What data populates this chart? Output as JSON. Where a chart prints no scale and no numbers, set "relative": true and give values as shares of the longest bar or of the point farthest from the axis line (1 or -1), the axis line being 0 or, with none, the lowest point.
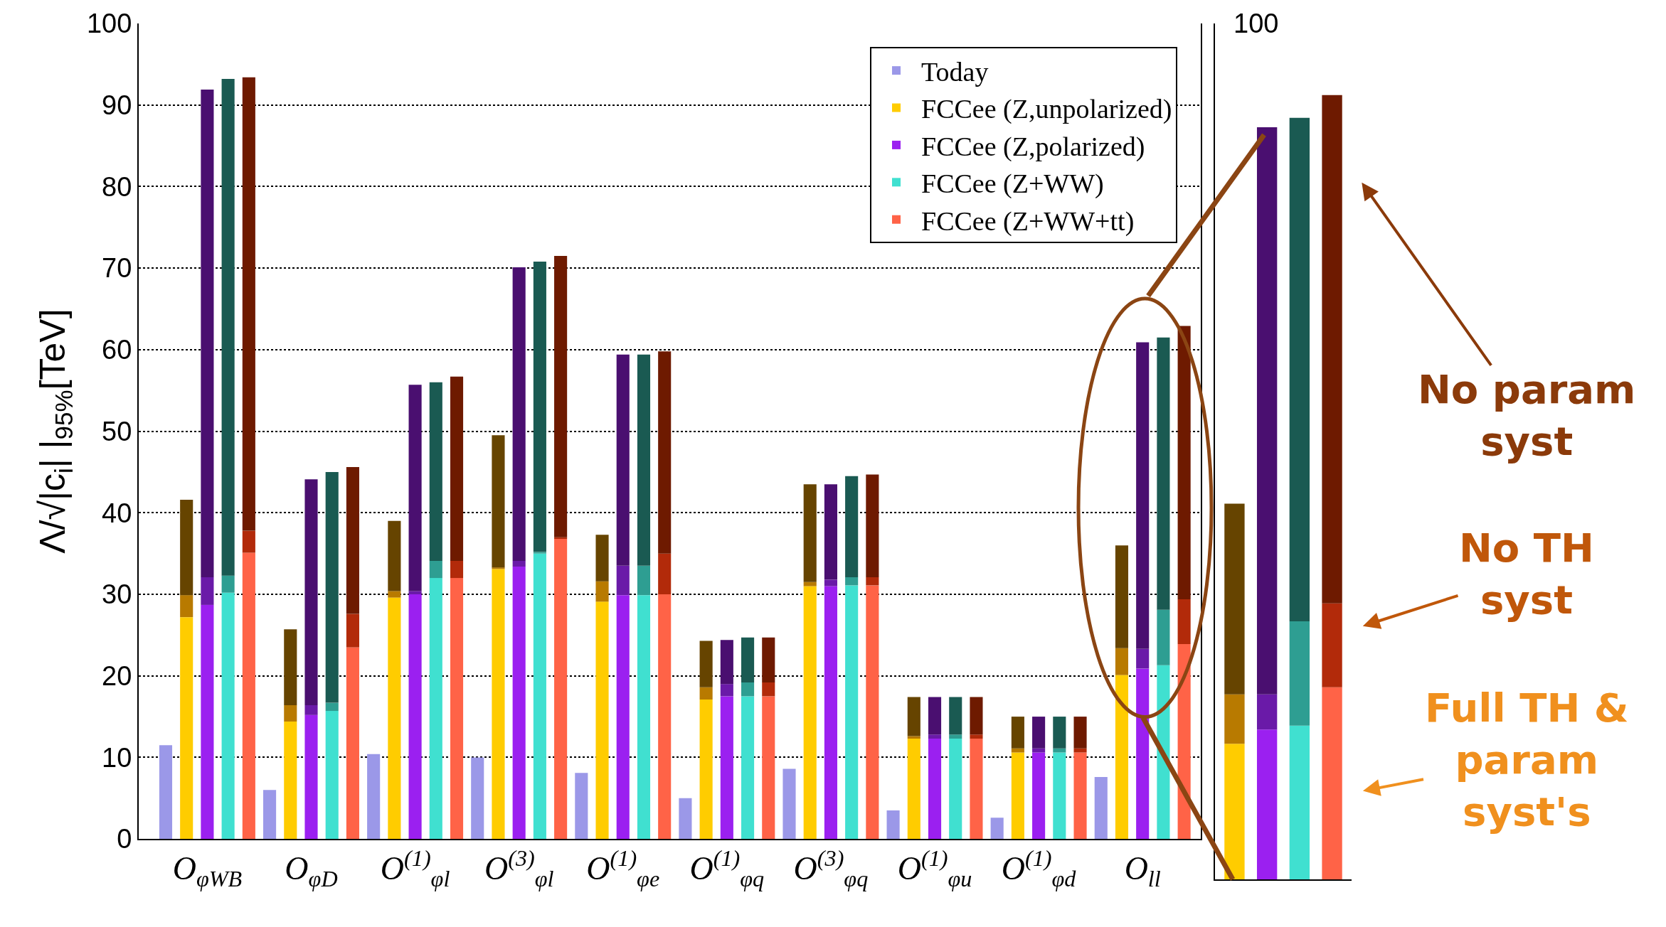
{
  "chart_data": [
    {
      "type": "bar",
      "ylabel": "Λ/√|c$_{i}$| |$_{95%}$[TeV]",
      "categories": [
        null,
        null,
        "O$_{φWB}$",
        null,
        null,
        null,
        null,
        "O$_{φD}$",
        null,
        null,
        null,
        null,
        "O$^{(1)}$$_{φl}$",
        null,
        null,
        null,
        null,
        "O$^{(3)}$$_{φl}$",
        null,
        null,
        null,
        null,
        "O$^{(1)}$$_{φe}$",
        null,
        null,
        null,
        null,
        "O$^{(1)}$$_{φq}$",
        null,
        null,
        null,
        null,
        "O$^{(3)}$$_{φq}$",
        null,
        null,
        null,
        null,
        "O$^{(1)}$$_{φu}$",
        null,
        null,
        null,
        null,
        "O$^{(1)}$$_{φd}$",
        null,
        null,
        null,
        null,
        "O$_{ll}$",
        null,
        null
      ],
      "stacked": true,
      "ylim": [
        0,
        100
      ],
      "yticks": [
        0,
        10,
        20,
        30,
        40,
        50,
        60,
        70,
        80,
        90,
        100
      ],
      "grid": "y",
      "legend": "top right",
      "series": [
        {
          "name": "Today",
          "color": "#9b98e8",
          "values": [
            11.5,
            null,
            null,
            null,
            null,
            6.0,
            null,
            null,
            null,
            null,
            10.4,
            null,
            null,
            null,
            null,
            10.0,
            null,
            null,
            null,
            null,
            8.1,
            null,
            null,
            null,
            null,
            5.0,
            null,
            null,
            null,
            null,
            8.6,
            null,
            null,
            null,
            null,
            3.5,
            null,
            null,
            null,
            null,
            2.6,
            null,
            null,
            null,
            null,
            7.6,
            null,
            null,
            null,
            null
          ]
        },
        {
          "name": "FCCee (Z,unpolarized)",
          "color": "#ffcc00",
          "values": [
            null,
            27.2,
            null,
            null,
            null,
            null,
            14.4,
            null,
            null,
            null,
            null,
            29.6,
            null,
            null,
            null,
            null,
            33.1,
            null,
            null,
            null,
            null,
            29.1,
            null,
            null,
            null,
            null,
            17.1,
            null,
            null,
            null,
            null,
            31.0,
            null,
            null,
            null,
            null,
            12.3,
            null,
            null,
            null,
            null,
            10.6,
            null,
            null,
            null,
            null,
            20.1,
            null,
            null,
            null
          ]
        },
        {
          "name": "FCCee (Z,polarized)",
          "color": "#9b20f0",
          "values": [
            null,
            null,
            28.7,
            null,
            null,
            null,
            null,
            15.2,
            null,
            null,
            null,
            null,
            30.0,
            null,
            null,
            null,
            null,
            33.4,
            null,
            null,
            null,
            null,
            29.9,
            null,
            null,
            null,
            null,
            17.5,
            null,
            null,
            null,
            null,
            31.0,
            null,
            null,
            null,
            null,
            12.3,
            null,
            null,
            null,
            null,
            10.6,
            null,
            null,
            null,
            null,
            20.9,
            null,
            null
          ]
        },
        {
          "name": "FCCee (Z+WW)",
          "color": "#40e0d0",
          "values": [
            null,
            null,
            null,
            30.2,
            null,
            null,
            null,
            null,
            15.7,
            null,
            null,
            null,
            null,
            32.0,
            null,
            null,
            null,
            null,
            35.0,
            null,
            null,
            null,
            null,
            29.9,
            null,
            null,
            null,
            null,
            17.5,
            null,
            null,
            null,
            null,
            31.1,
            null,
            null,
            null,
            null,
            12.3,
            null,
            null,
            null,
            null,
            10.6,
            null,
            null,
            null,
            null,
            21.3,
            null
          ]
        },
        {
          "name": "FCCee (Z+WW+tt)",
          "color": "#ff6347",
          "values": [
            null,
            null,
            null,
            null,
            35.1,
            null,
            null,
            null,
            null,
            23.5,
            null,
            null,
            null,
            null,
            32.0,
            null,
            null,
            null,
            null,
            36.8,
            null,
            null,
            null,
            null,
            30.0,
            null,
            null,
            null,
            null,
            17.5,
            null,
            null,
            null,
            null,
            31.1,
            null,
            null,
            null,
            null,
            12.3,
            null,
            null,
            null,
            null,
            10.6,
            null,
            null,
            null,
            null,
            23.9
          ]
        },
        {
          "colors": [
            null,
            "#b87a00",
            "#6a1aa8",
            "#2e9e92",
            "#b22a0a",
            null,
            "#b87a00",
            "#6a1aa8",
            "#2e9e92",
            "#b22a0a",
            null,
            "#b87a00",
            "#6a1aa8",
            "#2e9e92",
            "#b22a0a",
            null,
            "#b87a00",
            "#6a1aa8",
            "#2e9e92",
            "#b22a0a",
            null,
            "#b87a00",
            "#6a1aa8",
            "#2e9e92",
            "#b22a0a",
            null,
            "#b87a00",
            "#6a1aa8",
            "#2e9e92",
            "#b22a0a",
            null,
            "#b87a00",
            "#6a1aa8",
            "#2e9e92",
            "#b22a0a",
            null,
            "#b87a00",
            "#6a1aa8",
            "#2e9e92",
            "#b22a0a",
            null,
            "#b87a00",
            "#6a1aa8",
            "#2e9e92",
            "#b22a0a",
            null,
            "#b87a00",
            "#6a1aa8",
            "#2e9e92",
            "#b22a0a"
          ],
          "values": [
            null,
            2.7,
            3.4,
            2.1,
            2.7,
            null,
            2.0,
            1.2,
            1.0,
            4.1,
            null,
            0.8,
            0.4,
            2.1,
            2.1,
            null,
            0.2,
            0.7,
            0.2,
            0.2,
            null,
            2.5,
            3.6,
            3.6,
            5.0,
            null,
            1.5,
            1.5,
            1.7,
            1.7,
            null,
            0.5,
            0.8,
            1.0,
            1.0,
            null,
            0.3,
            0.5,
            0.5,
            0.5,
            null,
            0.5,
            0.5,
            0.5,
            0.5,
            null,
            3.3,
            2.4,
            6.8,
            5.5
          ]
        },
        {
          "colors": [
            null,
            "#664400",
            "#4a0f70",
            "#1a5a52",
            "#6e1a00",
            null,
            "#664400",
            "#4a0f70",
            "#1a5a52",
            "#6e1a00",
            null,
            "#664400",
            "#4a0f70",
            "#1a5a52",
            "#6e1a00",
            null,
            "#664400",
            "#4a0f70",
            "#1a5a52",
            "#6e1a00",
            null,
            "#664400",
            "#4a0f70",
            "#1a5a52",
            "#6e1a00",
            null,
            "#664400",
            "#4a0f70",
            "#1a5a52",
            "#6e1a00",
            null,
            "#664400",
            "#4a0f70",
            "#1a5a52",
            "#6e1a00",
            null,
            "#664400",
            "#4a0f70",
            "#1a5a52",
            "#6e1a00",
            null,
            "#664400",
            "#4a0f70",
            "#1a5a52",
            "#6e1a00",
            null,
            "#664400",
            "#4a0f70",
            "#1a5a52",
            "#6e1a00"
          ],
          "values": [
            null,
            11.7,
            59.8,
            60.9,
            55.6,
            null,
            9.3,
            27.7,
            28.3,
            18.0,
            null,
            8.6,
            25.3,
            21.9,
            22.6,
            null,
            16.2,
            36.0,
            35.6,
            34.5,
            null,
            5.7,
            25.9,
            25.9,
            24.8,
            null,
            5.7,
            5.4,
            5.5,
            5.5,
            null,
            12.0,
            11.7,
            12.4,
            12.6,
            null,
            4.8,
            4.6,
            4.6,
            4.6,
            null,
            3.9,
            3.9,
            3.9,
            3.9,
            null,
            12.6,
            37.6,
            33.4,
            33.5
          ]
        }
      ]
    },
    {
      "type": "bar",
      "relative": true,
      "stacked": true,
      "categories": [
        null,
        null,
        null,
        null
      ],
      "series": [
        {
          "colors": [
            "#ffcc00",
            "#9b20f0",
            "#40e0d0",
            "#ff6347"
          ],
          "values": [
            0.173,
            0.191,
            0.196,
            0.245
          ]
        },
        {
          "colors": [
            "#b87a00",
            "#6a1aa8",
            "#2e9e92",
            "#b22a0a"
          ],
          "values": [
            0.063,
            0.045,
            0.133,
            0.107
          ]
        },
        {
          "colors": [
            "#664400",
            "#4a0f70",
            "#1a5a52",
            "#6e1a00"
          ],
          "values": [
            0.243,
            0.723,
            0.642,
            0.648
          ]
        }
      ],
      "annotations": [
        "100",
        "No param\nsyst",
        "No TH\nsyst",
        "Full TH &\nparam\nsyst's"
      ]
    }
  ]
}
